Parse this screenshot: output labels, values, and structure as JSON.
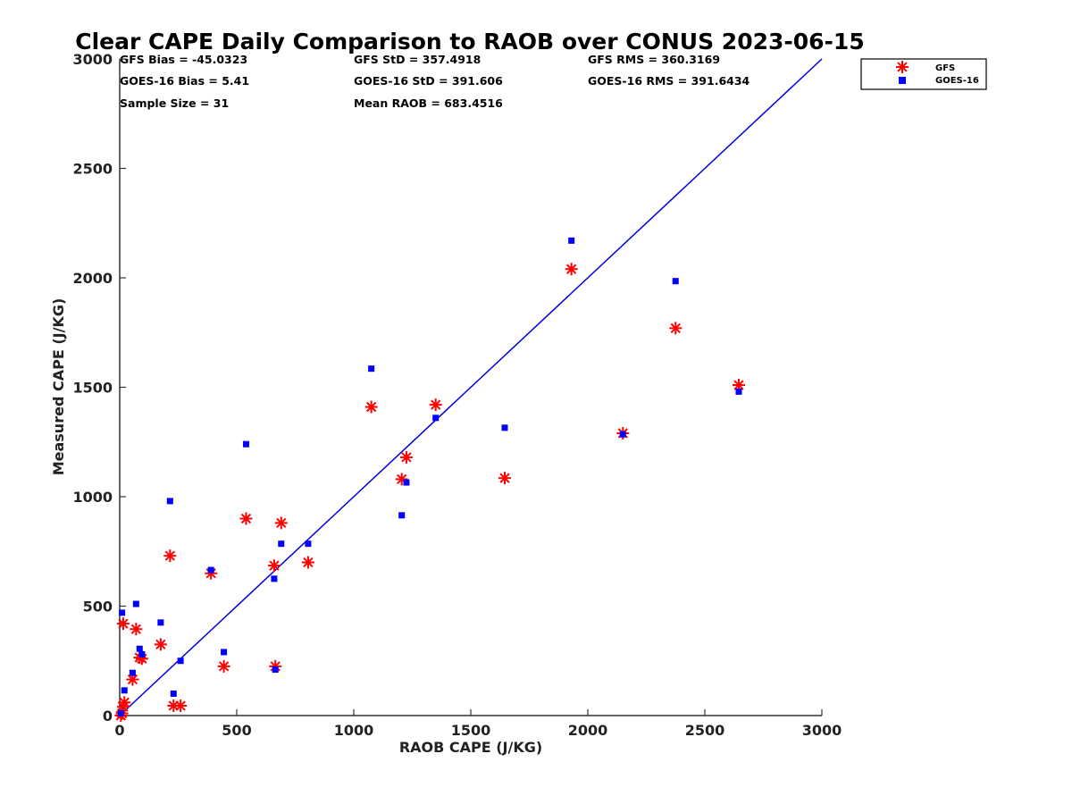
{
  "chart_data": {
    "type": "scatter",
    "title": "Clear CAPE Daily Comparison to RAOB over CONUS 2023-06-15",
    "xlabel": "RAOB CAPE (J/KG)",
    "ylabel": "Measured CAPE (J/KG)",
    "xlim": [
      0,
      3000
    ],
    "ylim": [
      0,
      3000
    ],
    "xticks": [
      0,
      500,
      1000,
      1500,
      2000,
      2500,
      3000
    ],
    "yticks": [
      0,
      500,
      1000,
      1500,
      2000,
      2500,
      3000
    ],
    "xtick_labels": [
      "0",
      "500",
      "1000",
      "1500",
      "2000",
      "2500",
      "3000"
    ],
    "ytick_labels": [
      "0",
      "500",
      "1000",
      "1500",
      "2000",
      "2500",
      "3000"
    ],
    "grid": false,
    "legend_position": "top-right",
    "stats": [
      "GFS Bias = -45.0323",
      "GOES-16 Bias = 5.41",
      "Sample Size = 31",
      "GFS StD = 357.4918",
      "GOES-16 StD = 391.606",
      "Mean RAOB = 683.4516",
      "GFS RMS = 360.3169",
      "GOES-16 RMS = 391.6434"
    ],
    "reference_line": {
      "x": [
        0,
        3000
      ],
      "y": [
        0,
        3000
      ],
      "color": "#0000dd"
    },
    "series": [
      {
        "name": "GFS",
        "marker": "asterisk",
        "color": "#ff0000",
        "points": [
          [
            5,
            0
          ],
          [
            10,
            10
          ],
          [
            15,
            40
          ],
          [
            20,
            60
          ],
          [
            15,
            420
          ],
          [
            55,
            165
          ],
          [
            70,
            395
          ],
          [
            85,
            265
          ],
          [
            95,
            260
          ],
          [
            175,
            325
          ],
          [
            215,
            730
          ],
          [
            230,
            45
          ],
          [
            260,
            45
          ],
          [
            390,
            650
          ],
          [
            445,
            225
          ],
          [
            540,
            900
          ],
          [
            660,
            685
          ],
          [
            665,
            225
          ],
          [
            690,
            880
          ],
          [
            805,
            700
          ],
          [
            1075,
            1410
          ],
          [
            1205,
            1080
          ],
          [
            1225,
            1180
          ],
          [
            1350,
            1420
          ],
          [
            1645,
            1085
          ],
          [
            1930,
            2040
          ],
          [
            2150,
            1290
          ],
          [
            2375,
            1770
          ],
          [
            2645,
            1510
          ]
        ]
      },
      {
        "name": "GOES-16",
        "marker": "square",
        "color": "#0000ff",
        "points": [
          [
            5,
            10
          ],
          [
            10,
            470
          ],
          [
            20,
            115
          ],
          [
            55,
            195
          ],
          [
            70,
            510
          ],
          [
            85,
            305
          ],
          [
            95,
            280
          ],
          [
            175,
            425
          ],
          [
            215,
            980
          ],
          [
            230,
            100
          ],
          [
            260,
            250
          ],
          [
            390,
            665
          ],
          [
            445,
            290
          ],
          [
            540,
            1240
          ],
          [
            660,
            625
          ],
          [
            665,
            210
          ],
          [
            690,
            785
          ],
          [
            805,
            785
          ],
          [
            1075,
            1585
          ],
          [
            1205,
            915
          ],
          [
            1225,
            1065
          ],
          [
            1350,
            1360
          ],
          [
            1645,
            1315
          ],
          [
            1930,
            2170
          ],
          [
            2150,
            1285
          ],
          [
            2375,
            1985
          ],
          [
            2645,
            1480
          ]
        ]
      }
    ]
  }
}
